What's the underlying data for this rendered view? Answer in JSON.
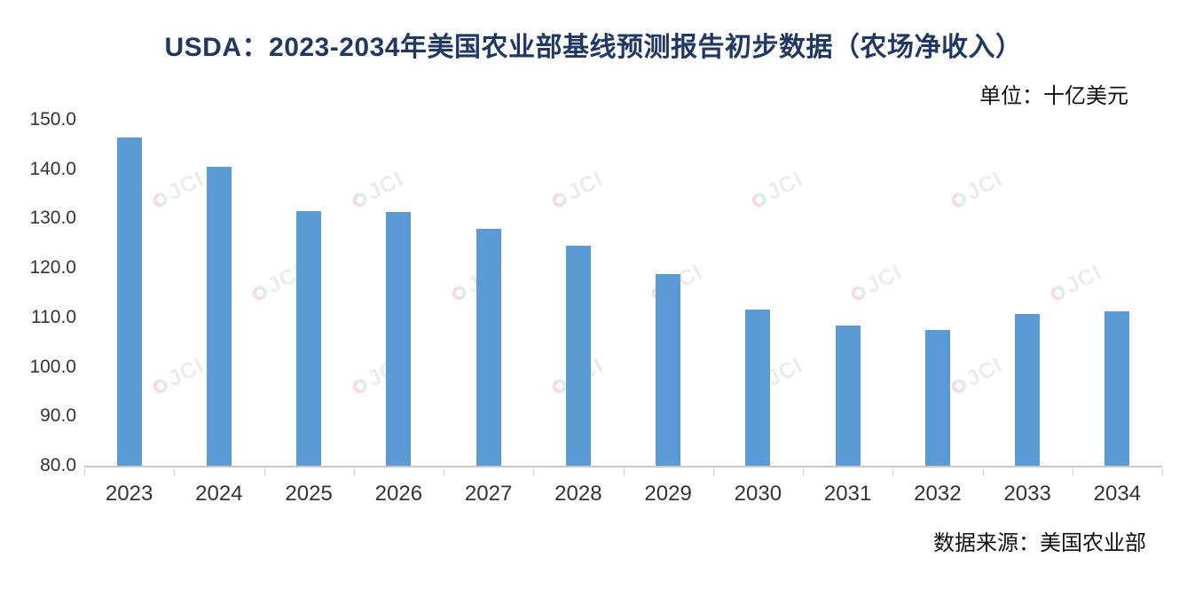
{
  "title": "USDA：2023-2034年美国农业部基线预测报告初步数据（农场净收入）",
  "unit_label": "单位：十亿美元",
  "source_label": "数据来源：美国农业部",
  "watermark_text": "JCI",
  "colors": {
    "bar": "#5B9BD5",
    "title": "#1F3864",
    "axis_text": "#333333",
    "baseline": "#C9C9C9"
  },
  "chart_data": {
    "type": "bar",
    "title": "USDA：2023-2034年美国农业部基线预测报告初步数据（农场净收入）",
    "categories": [
      "2023",
      "2024",
      "2025",
      "2026",
      "2027",
      "2028",
      "2029",
      "2030",
      "2031",
      "2032",
      "2033",
      "2034"
    ],
    "values": [
      146.5,
      140.5,
      131.5,
      131.3,
      128.0,
      124.5,
      118.8,
      111.6,
      108.3,
      107.5,
      110.7,
      111.2
    ],
    "xlabel": "",
    "ylabel": "十亿美元",
    "ylim": [
      80.0,
      150.0
    ],
    "yticks": [
      150.0,
      140.0,
      130.0,
      120.0,
      110.0,
      100.0,
      90.0,
      80.0
    ],
    "grid": false,
    "legend": null
  }
}
